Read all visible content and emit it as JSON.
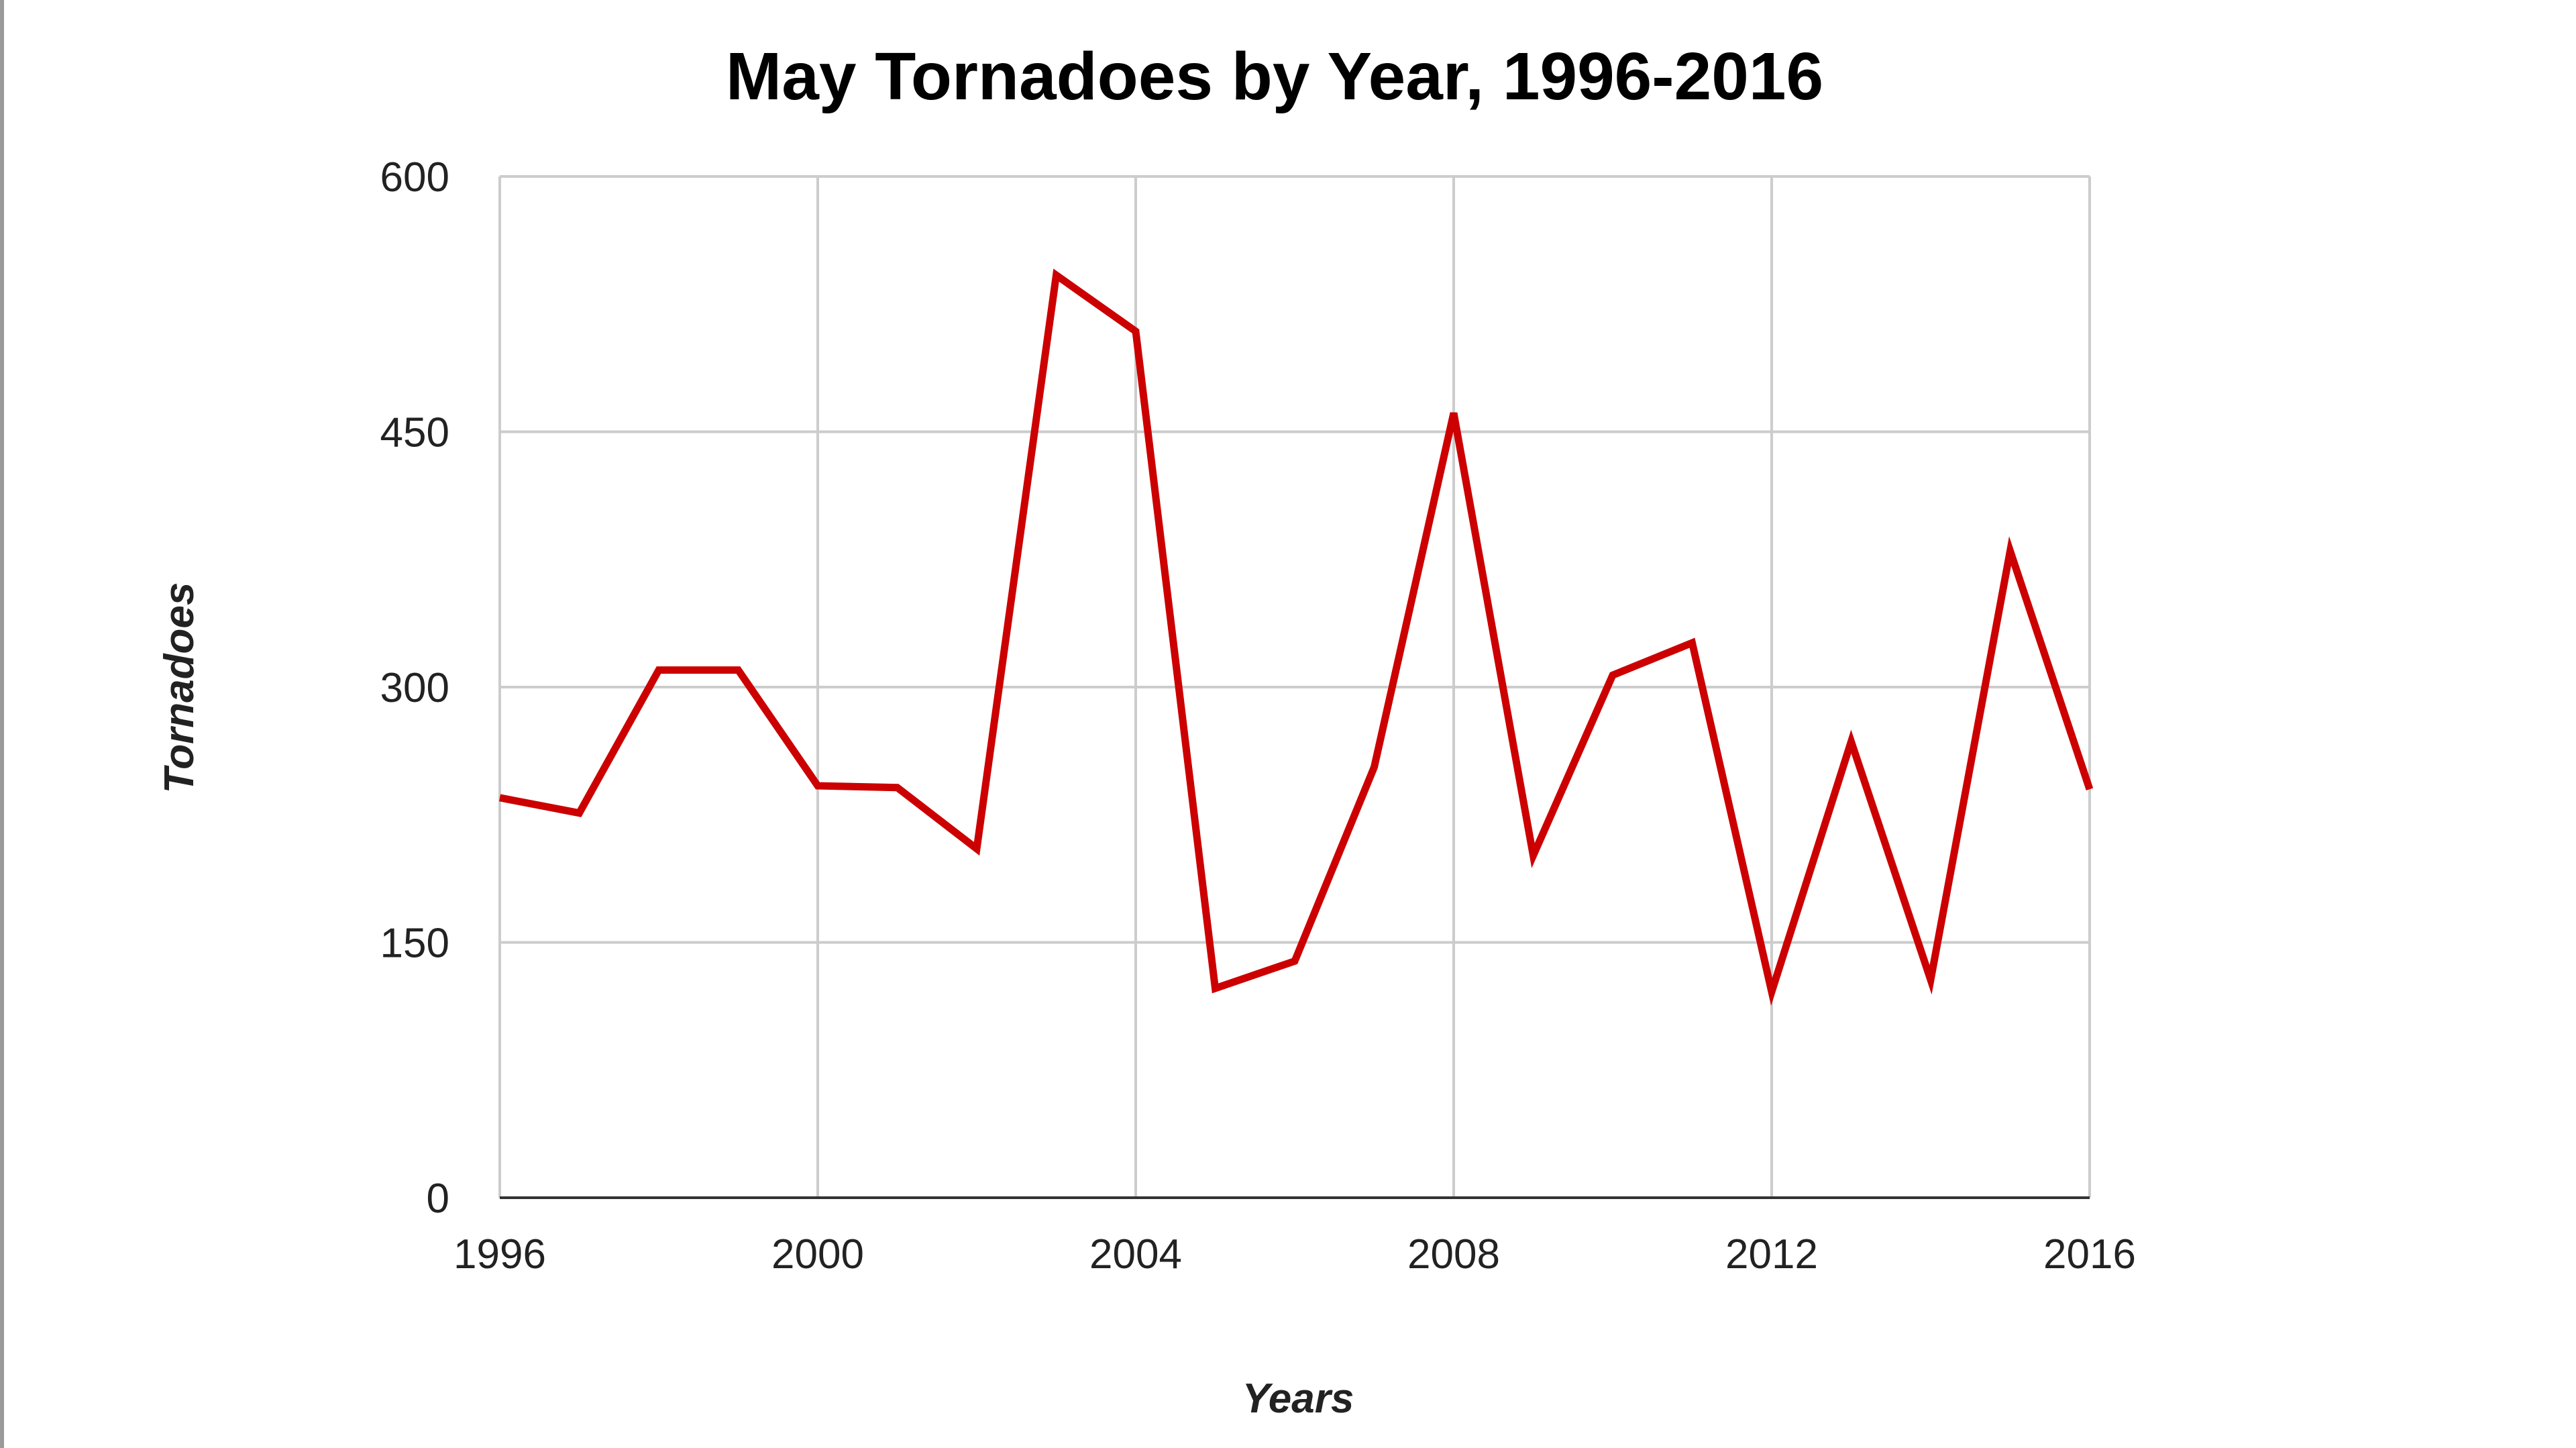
{
  "chart_data": {
    "type": "line",
    "title": "May Tornadoes by Year, 1996-2016",
    "xlabel": "Years",
    "ylabel": "Tornadoes",
    "xlim": [
      1996,
      2016
    ],
    "ylim": [
      0,
      600
    ],
    "x_ticks": [
      1996,
      2000,
      2004,
      2008,
      2012,
      2016
    ],
    "y_ticks": [
      0,
      150,
      300,
      450,
      600
    ],
    "grid": true,
    "legend": "none",
    "colors": {
      "line": "#cc0000",
      "grid": "#cccccc",
      "axis": "#333333"
    },
    "series": [
      {
        "x": [
          1996,
          1997,
          1998,
          1999,
          2000,
          2001,
          2002,
          2003,
          2004,
          2005,
          2006,
          2007,
          2008,
          2009,
          2010,
          2011,
          2012,
          2013,
          2014,
          2015,
          2016
        ],
        "y": [
          235,
          226,
          310,
          310,
          242,
          241,
          205,
          542,
          509,
          123,
          139,
          253,
          461,
          201,
          307,
          326,
          121,
          268,
          128,
          380,
          240
        ]
      }
    ]
  }
}
